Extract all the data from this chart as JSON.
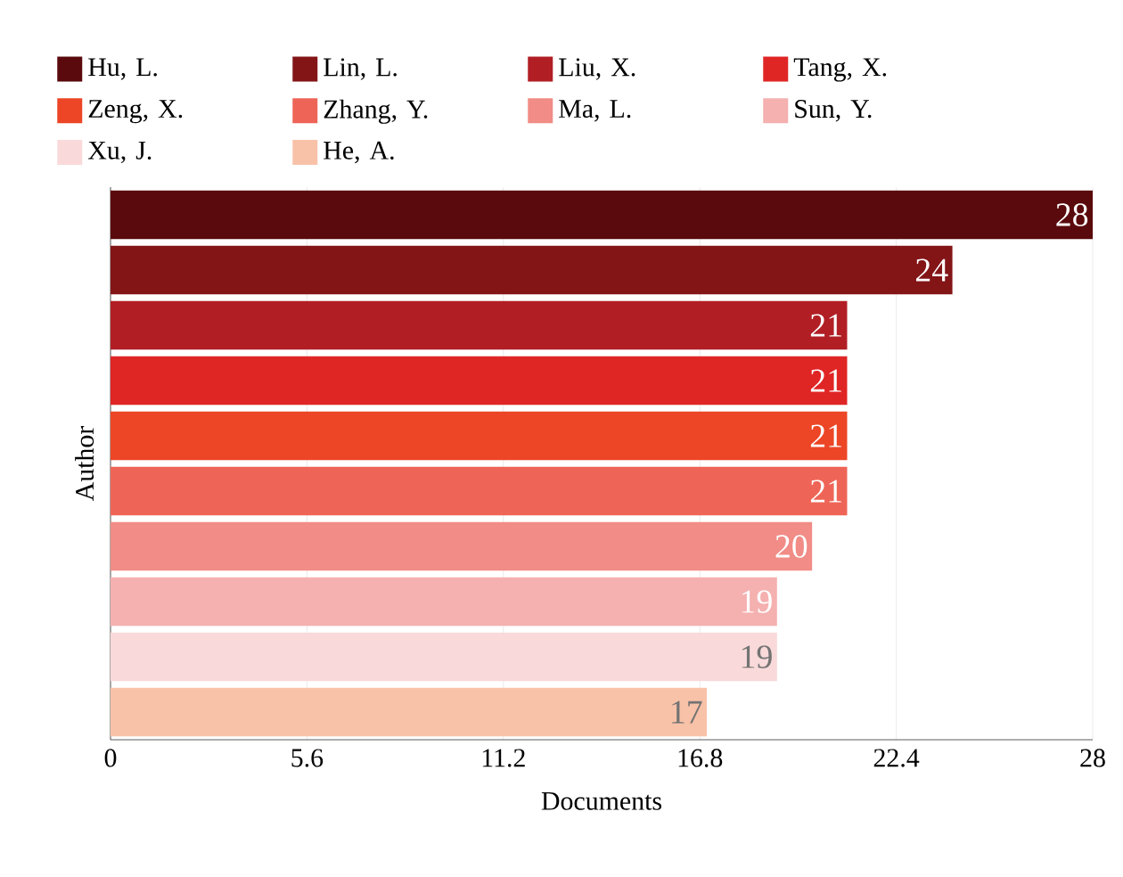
{
  "chart_data": {
    "type": "bar",
    "orientation": "horizontal",
    "xlabel": "Documents",
    "ylabel": "Author",
    "categories": [
      null,
      null,
      null,
      null,
      null,
      null,
      null,
      null,
      null,
      null
    ],
    "series": [
      {
        "name": "Hu, L.",
        "color": "#5a0a0c",
        "values": [
          28,
          null,
          null,
          null,
          null,
          null,
          null,
          null,
          null,
          null
        ]
      },
      {
        "name": "Lin, L.",
        "color": "#831517",
        "values": [
          null,
          24,
          null,
          null,
          null,
          null,
          null,
          null,
          null,
          null
        ]
      },
      {
        "name": "Liu, X.",
        "color": "#b11f25",
        "values": [
          null,
          null,
          21,
          null,
          null,
          null,
          null,
          null,
          null,
          null
        ]
      },
      {
        "name": "Tang, X.",
        "color": "#e02525",
        "values": [
          null,
          null,
          null,
          21,
          null,
          null,
          null,
          null,
          null,
          null
        ]
      },
      {
        "name": "Zeng, X.",
        "color": "#ec4626",
        "values": [
          null,
          null,
          null,
          null,
          21,
          null,
          null,
          null,
          null,
          null
        ]
      },
      {
        "name": "Zhang, Y.",
        "color": "#ee6557",
        "values": [
          null,
          null,
          null,
          null,
          null,
          21,
          null,
          null,
          null,
          null
        ]
      },
      {
        "name": "Ma, L.",
        "color": "#f18c86",
        "values": [
          null,
          null,
          null,
          null,
          null,
          null,
          20,
          null,
          null,
          null
        ]
      },
      {
        "name": "Sun, Y.",
        "color": "#f5b0b0",
        "values": [
          null,
          null,
          null,
          null,
          null,
          null,
          null,
          19,
          null,
          null
        ]
      },
      {
        "name": "Xu, J.",
        "color": "#f9d9d9",
        "values": [
          null,
          null,
          null,
          null,
          null,
          null,
          null,
          null,
          19,
          null
        ]
      },
      {
        "name": "He, A.",
        "color": "#f8c2a8",
        "values": [
          null,
          null,
          null,
          null,
          null,
          null,
          null,
          null,
          null,
          17
        ]
      }
    ],
    "xlim": [
      0,
      28
    ],
    "xticks": [
      0,
      5.6,
      11.2,
      16.8,
      22.4,
      28
    ],
    "grid": "x",
    "legend": "top",
    "data_labels": true
  }
}
